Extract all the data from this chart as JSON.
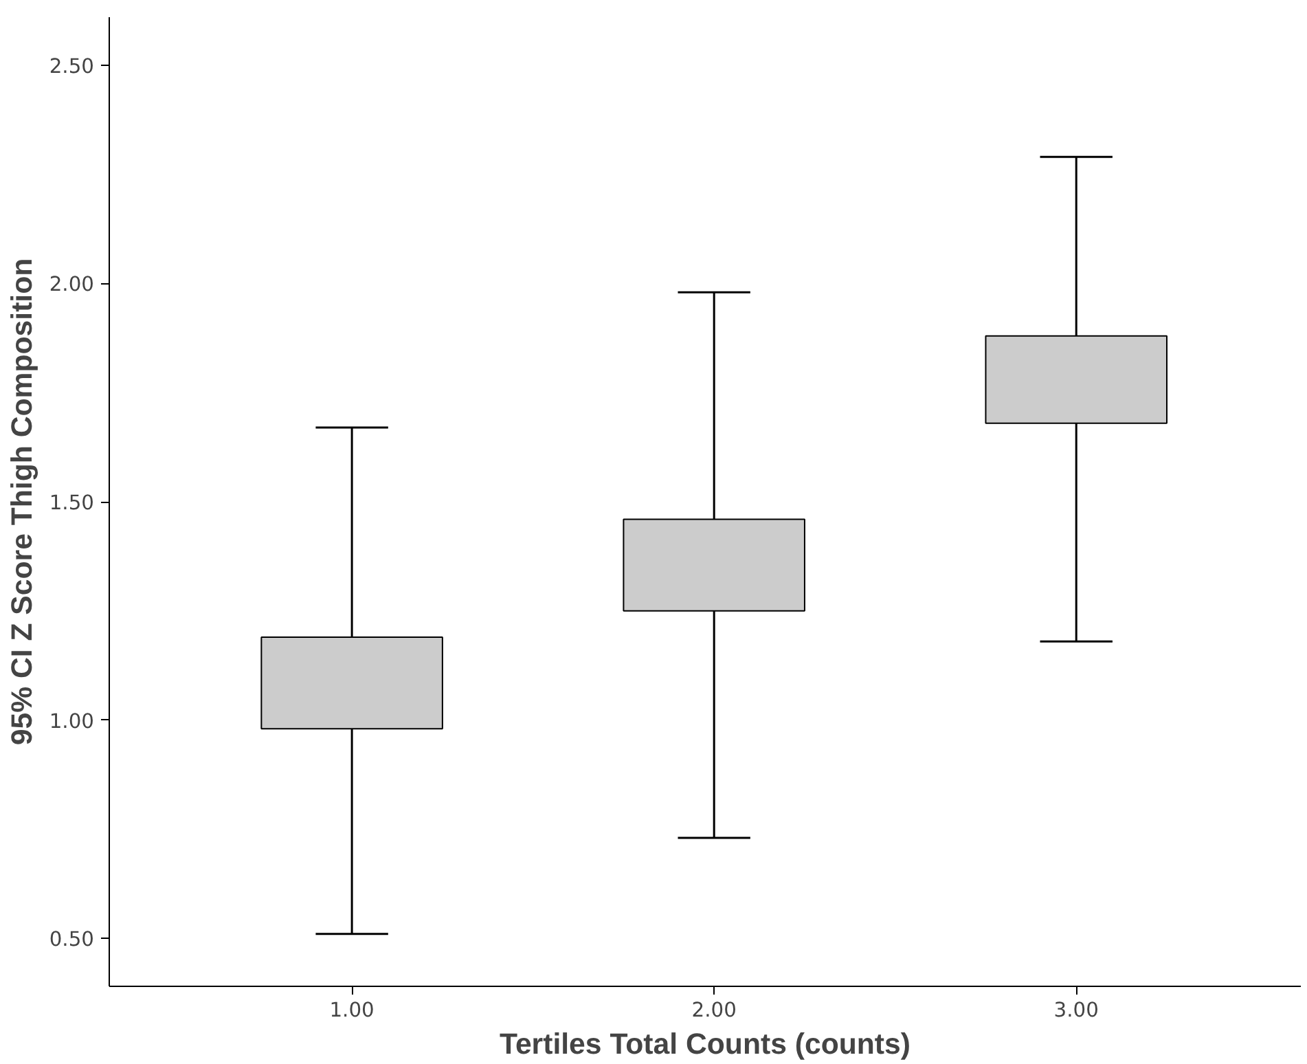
{
  "chart_data": {
    "type": "box",
    "xlabel": "Tertiles Total Counts (counts)",
    "ylabel": "95% CI Z Score Thigh Composition",
    "categories": [
      "1.00",
      "2.00",
      "3.00"
    ],
    "boxes": [
      {
        "low": 0.51,
        "q1": 0.98,
        "q3": 1.19,
        "high": 1.67
      },
      {
        "low": 0.73,
        "q1": 1.25,
        "q3": 1.46,
        "high": 1.98
      },
      {
        "low": 1.18,
        "q1": 1.68,
        "q3": 1.88,
        "high": 2.29
      }
    ],
    "color": "#cccccc",
    "ylim": [
      0.39,
      2.61
    ],
    "yticks": [
      {
        "value": 0.5,
        "label": "0.50"
      },
      {
        "value": 1.0,
        "label": "1.00"
      },
      {
        "value": 1.5,
        "label": "1.50"
      },
      {
        "value": 2.0,
        "label": "2.00"
      },
      {
        "value": 2.5,
        "label": "2.50"
      }
    ],
    "grid": false
  }
}
